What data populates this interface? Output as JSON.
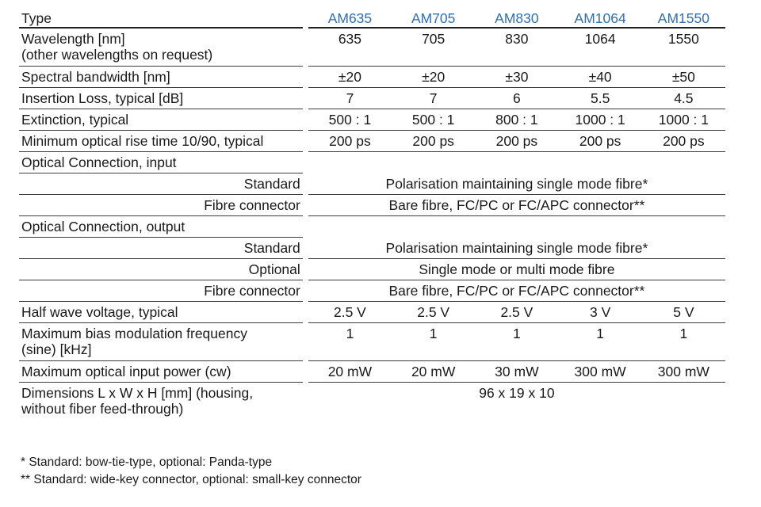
{
  "table": {
    "header": {
      "label": "Type",
      "models": [
        "AM635",
        "AM705",
        "AM830",
        "AM1064",
        "AM1550"
      ]
    },
    "wavelength": {
      "label_line1": "Wavelength [nm]",
      "label_line2": "(other wavelengths on request)",
      "values": [
        "635",
        "705",
        "830",
        "1064",
        "1550"
      ]
    },
    "bandwidth": {
      "label": "Spectral bandwidth [nm]",
      "values": [
        "±20",
        "±20",
        "±30",
        "±40",
        "±50"
      ]
    },
    "insertion_loss": {
      "label": "Insertion Loss, typical [dB]",
      "values": [
        "7",
        "7",
        "6",
        "5.5",
        "4.5"
      ]
    },
    "extinction": {
      "label": "Extinction, typical",
      "values": [
        "500 : 1",
        "500 : 1",
        "800 : 1",
        "1000 : 1",
        "1000 : 1"
      ]
    },
    "rise_time": {
      "label": "Minimum optical rise time 10/90, typical",
      "values": [
        "200 ps",
        "200 ps",
        "200 ps",
        "200 ps",
        "200 ps"
      ]
    },
    "conn_input": {
      "label": "Optical Connection, input",
      "standard_label": "Standard",
      "standard_value": "Polarisation maintaining single mode fibre*",
      "connector_label": "Fibre connector",
      "connector_value": "Bare fibre, FC/PC or FC/APC connector**"
    },
    "conn_output": {
      "label": "Optical Connection, output",
      "standard_label": "Standard",
      "standard_value": "Polarisation maintaining single mode fibre*",
      "optional_label": "Optional",
      "optional_value": "Single mode or multi mode fibre",
      "connector_label": "Fibre connector",
      "connector_value": "Bare fibre, FC/PC or FC/APC connector**"
    },
    "half_wave": {
      "label": "Half wave voltage, typical",
      "values": [
        "2.5 V",
        "2.5 V",
        "2.5 V",
        "3 V",
        "5 V"
      ]
    },
    "bias_freq": {
      "label_line1": "Maximum bias modulation frequency",
      "label_line2": "(sine) [kHz]",
      "values": [
        "1",
        "1",
        "1",
        "1",
        "1"
      ]
    },
    "input_power": {
      "label": "Maximum optical input power (cw)",
      "values": [
        "20 mW",
        "20 mW",
        "30 mW",
        "300 mW",
        "300 mW"
      ]
    },
    "dimensions": {
      "label_line1": "Dimensions L x W x H [mm] (housing,",
      "label_line2": "without fiber feed-through)",
      "value": "96 x 19 x 10"
    }
  },
  "footnotes": {
    "note1": "*  Standard: bow-tie-type, optional: Panda-type",
    "note2": "** Standard: wide-key connector, optional: small-key connector"
  },
  "colors": {
    "model_header": "#2f6fb3",
    "rule": "#3c3c3c"
  }
}
